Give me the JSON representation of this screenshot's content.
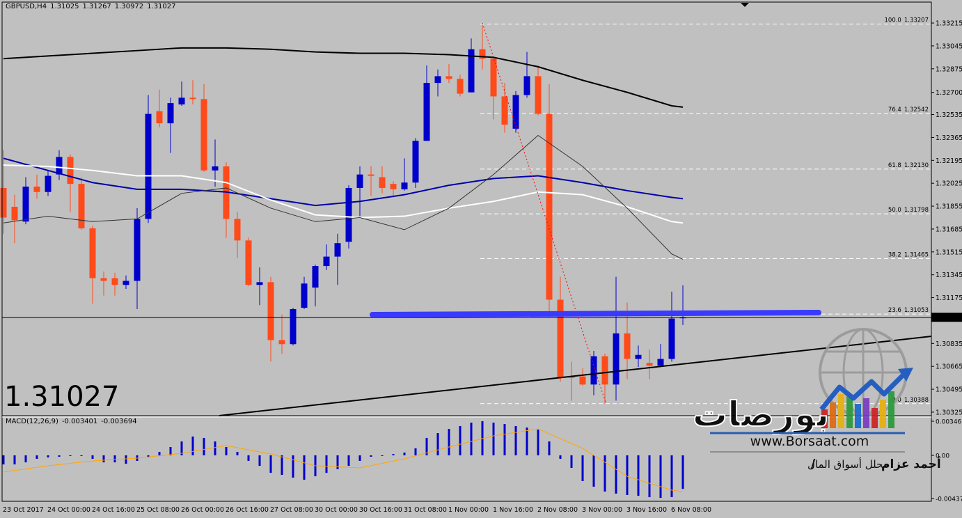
{
  "chart_data": {
    "type": "candlestick",
    "symbol": "GBPUSD,H4",
    "categories": [
      "23 Oct 2017",
      null,
      null,
      null,
      "24 Oct 00:00",
      null,
      null,
      null,
      "24 Oct 16:00",
      null,
      null,
      null,
      "25 Oct 08:00",
      null,
      null,
      null,
      "26 Oct 00:00",
      null,
      null,
      null,
      "26 Oct 16:00",
      null,
      null,
      null,
      "27 Oct 08:00",
      null,
      null,
      null,
      "30 Oct 00:00",
      null,
      null,
      null,
      "30 Oct 16:00",
      null,
      null,
      null,
      "31 Oct 08:00",
      null,
      null,
      null,
      "1 Nov 00:00",
      null,
      null,
      null,
      "1 Nov 16:00",
      null,
      null,
      null,
      "2 Nov 08:00",
      null,
      null,
      null,
      "3 Nov 00:00",
      null,
      null,
      null,
      "3 Nov 16:00",
      null,
      null,
      null,
      "6 Nov 08:00",
      null
    ],
    "open": [
      1.3199,
      1.3185,
      1.3174,
      1.32,
      1.3196,
      1.3209,
      1.3222,
      1.3202,
      1.3169,
      1.3132,
      1.3132,
      1.3127,
      1.313,
      1.3176,
      1.3256,
      1.3247,
      1.3261,
      1.3266,
      1.3265,
      1.3212,
      1.3215,
      1.3176,
      1.316,
      1.3127,
      1.3129,
      1.3086,
      1.3083,
      1.311,
      1.3125,
      1.3141,
      1.3148,
      1.3159,
      1.3199,
      1.3209,
      1.3207,
      1.3202,
      1.3198,
      1.3203,
      1.3234,
      1.3277,
      1.3282,
      1.328,
      1.327,
      1.3302,
      1.3295,
      1.3267,
      1.3243,
      1.3268,
      1.3282,
      1.3254,
      1.3116,
      1.3059,
      1.3059,
      1.3053,
      1.3074,
      1.3053,
      1.3091,
      1.3072,
      1.3069,
      1.3067,
      1.3072,
      1.31025
    ],
    "high": [
      1.3227,
      1.3194,
      1.3207,
      1.3209,
      1.3212,
      1.3227,
      1.3224,
      1.3207,
      1.3171,
      1.3137,
      1.3136,
      1.3134,
      1.3184,
      1.3268,
      1.3272,
      1.3266,
      1.3278,
      1.3279,
      1.3276,
      1.3235,
      1.3218,
      1.3181,
      1.3162,
      1.314,
      1.3133,
      1.3105,
      1.311,
      1.3133,
      1.3142,
      1.3157,
      1.3165,
      1.3201,
      1.3215,
      1.3215,
      1.3215,
      1.3204,
      1.3221,
      1.3236,
      1.329,
      1.3287,
      1.3291,
      1.3283,
      1.331,
      1.332,
      1.3297,
      1.3277,
      1.3271,
      1.33,
      1.329,
      1.3276,
      1.3133,
      1.307,
      1.3065,
      1.3078,
      1.3076,
      1.3133,
      1.3114,
      1.3082,
      1.3079,
      1.3083,
      1.3122,
      1.31267
    ],
    "low": [
      1.3165,
      1.3158,
      1.3172,
      1.3191,
      1.3193,
      1.3205,
      1.3181,
      1.3168,
      1.3113,
      1.3119,
      1.3119,
      1.3124,
      1.3109,
      1.3173,
      1.3244,
      1.3225,
      1.326,
      1.3261,
      1.3211,
      1.32,
      1.3162,
      1.3147,
      1.3126,
      1.3112,
      1.307,
      1.3076,
      1.3082,
      1.3109,
      1.3111,
      1.3138,
      1.3127,
      1.3154,
      1.3178,
      1.3193,
      1.3195,
      1.3192,
      1.3197,
      1.3199,
      1.3234,
      1.3267,
      1.3277,
      1.3267,
      1.327,
      1.3287,
      1.325,
      1.324,
      1.324,
      1.3266,
      1.3253,
      1.3103,
      1.3055,
      1.3041,
      1.3052,
      1.3045,
      1.3039,
      1.3041,
      1.3057,
      1.3066,
      1.3057,
      1.3066,
      1.307,
      1.30972
    ],
    "close": [
      1.3177,
      1.3175,
      1.32,
      1.3196,
      1.3208,
      1.3222,
      1.3202,
      1.3169,
      1.3132,
      1.313,
      1.3127,
      1.313,
      1.3176,
      1.3254,
      1.3247,
      1.3262,
      1.3266,
      1.3265,
      1.3212,
      1.3215,
      1.3176,
      1.316,
      1.3127,
      1.3129,
      1.3086,
      1.3083,
      1.3109,
      1.3128,
      1.3141,
      1.3148,
      1.3158,
      1.3199,
      1.3209,
      1.3208,
      1.3199,
      1.3198,
      1.3203,
      1.3234,
      1.3277,
      1.3282,
      1.328,
      1.3269,
      1.3302,
      1.3295,
      1.3267,
      1.3246,
      1.3268,
      1.3282,
      1.3254,
      1.3116,
      1.3058,
      1.3058,
      1.3053,
      1.3074,
      1.3053,
      1.3091,
      1.3072,
      1.3075,
      1.3067,
      1.3072,
      1.3102,
      1.31027
    ],
    "up_color": "#0000cd",
    "down_color": "#ff4a1a",
    "ylim": [
      1.30304,
      1.3336
    ],
    "yticks": [
      1.33215,
      1.33045,
      1.32875,
      {
        "value": 1.327,
        "label": "1.32700"
      },
      1.32535,
      1.32365,
      1.32195,
      1.32025,
      1.31855,
      1.31685,
      1.31515,
      1.31345,
      1.31175,
      1.30835,
      1.30665,
      1.30495,
      1.30325
    ],
    "moving_averages": [
      {
        "color": "#000000",
        "width": 2,
        "x": [
          0,
          4,
          8,
          12,
          16,
          20,
          24,
          28,
          32,
          36,
          40,
          44,
          48,
          52,
          56,
          60,
          61
        ],
        "values": [
          1.3295,
          1.3297,
          1.3299,
          1.3301,
          1.3303,
          1.3303,
          1.3302,
          1.33,
          1.3299,
          1.3299,
          1.3298,
          1.3296,
          1.3289,
          1.3279,
          1.327,
          1.326,
          1.3259
        ]
      },
      {
        "color": "#0000aa",
        "width": 2,
        "x": [
          0,
          4,
          8,
          12,
          16,
          20,
          24,
          28,
          32,
          36,
          40,
          44,
          48,
          52,
          56,
          60,
          61
        ],
        "values": [
          1.3221,
          1.3212,
          1.3203,
          1.3198,
          1.3198,
          1.3196,
          1.3191,
          1.3186,
          1.3189,
          1.3194,
          1.3201,
          1.3206,
          1.3208,
          1.3203,
          1.3197,
          1.3192,
          1.3191
        ]
      },
      {
        "color": "#ffffff",
        "width": 2,
        "x": [
          0,
          4,
          8,
          12,
          16,
          20,
          24,
          28,
          32,
          36,
          40,
          44,
          48,
          52,
          56,
          60,
          61
        ],
        "values": [
          1.3216,
          1.3215,
          1.3212,
          1.3208,
          1.3208,
          1.3203,
          1.319,
          1.3179,
          1.3177,
          1.3178,
          1.3184,
          1.3189,
          1.3196,
          1.3194,
          1.3185,
          1.3174,
          1.3173
        ]
      },
      {
        "color": "#333333",
        "width": 1,
        "x": [
          0,
          4,
          8,
          12,
          16,
          20,
          24,
          28,
          32,
          36,
          40,
          44,
          48,
          52,
          56,
          60,
          61
        ],
        "values": [
          1.3173,
          1.3178,
          1.3174,
          1.3176,
          1.3195,
          1.3199,
          1.3184,
          1.3174,
          1.3177,
          1.3168,
          1.3184,
          1.3209,
          1.3238,
          1.3215,
          1.3184,
          1.315,
          1.3146
        ]
      }
    ],
    "fib_color": "#ffffff",
    "fibonacci": [
      {
        "ratio": {
          "value": 100,
          "label": "100.0"
        },
        "price": 1.33207
      },
      {
        "ratio": 76.4,
        "price": 1.32542
      },
      {
        "ratio": 61.8,
        "price": {
          "value": 1.3213,
          "label": "1.32130"
        }
      },
      {
        "ratio": {
          "value": 50,
          "label": "50.0"
        },
        "price": 1.31798
      },
      {
        "ratio": 38.2,
        "price": 1.31465
      },
      {
        "ratio": 23.6,
        "price": 1.31053
      },
      {
        "ratio": {
          "value": 0,
          "label": "0.0"
        },
        "price": 1.30388
      }
    ],
    "macd": {
      "name": "MACD(12,26,9)",
      "hist_color": "#0000cd",
      "histogram": [
        -0.00092,
        -0.00092,
        -0.00071,
        -0.00035,
        -0.00021,
        -0.00014,
        -7e-05,
        -7e-05,
        -0.00035,
        -0.00071,
        -0.00071,
        -0.00085,
        -0.00056,
        -0.00021,
        0.00035,
        0.00085,
        0.00141,
        0.00191,
        0.00177,
        0.00141,
        0.00085,
        0.00035,
        -0.00056,
        -0.00106,
        -0.00177,
        -0.00198,
        -0.00226,
        -0.00247,
        -0.00212,
        -0.00177,
        -0.00141,
        -0.00106,
        -0.00056,
        -0.00014,
        -7e-05,
        0.00014,
        0.00028,
        0.00071,
        0.00177,
        0.00226,
        0.00268,
        0.00297,
        0.00332,
        0.00346,
        0.00332,
        0.00318,
        0.00297,
        0.00282,
        0.00261,
        0.00141,
        -0.00035,
        -0.00127,
        -0.00261,
        -0.00318,
        -0.00367,
        -0.00388,
        -0.00402,
        -0.0041,
        -0.00424,
        -0.00431,
        -0.00424,
        -0.003401
      ],
      "signal": {
        "color": "#ffa500",
        "x": [
          0,
          4,
          8,
          12,
          16,
          20,
          24,
          28,
          32,
          36,
          40,
          44,
          48,
          52,
          56,
          60,
          61
        ],
        "values": [
          -0.00169,
          -0.00106,
          -0.00056,
          -0.00028,
          0.00021,
          0.00099,
          0.00014,
          -0.00106,
          -0.00127,
          -0.00035,
          0.00085,
          0.00198,
          0.00268,
          0.00071,
          -0.00212,
          -0.00353,
          -0.003694
        ]
      },
      "ylim": [
        -0.004377,
        0.003463
      ],
      "yticks": [
        0.003463,
        {
          "value": 0,
          "label": "0.00"
        },
        -0.004377
      ]
    },
    "watermark": {
      "brand": "بورصات",
      "url": "www.Borsaat.com",
      "author": "أحمد عزام",
      "separator": "/",
      "role": "محلل أسواق المال"
    }
  }
}
